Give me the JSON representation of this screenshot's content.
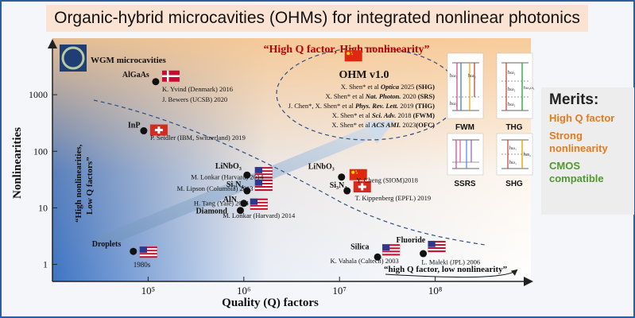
{
  "slide": {
    "title": "Organic-hybrid microcavities (OHMs) for integrated nonlinear photonics",
    "wgm_label": "WGM microcavities",
    "banner": "“High Q factor, High nonlinearity”",
    "ohm_label": "OHM v1.0",
    "left_note_1": "“High nonlinearities,",
    "left_note_2": "Low Q factors”",
    "bottom_note": "“high Q factor, low nonlinearity”"
  },
  "chart_data": {
    "type": "scatter",
    "xlabel": "Quality (Q) factors",
    "ylabel": "Nonlinearities",
    "x_scale": "log",
    "y_scale": "log",
    "xlim": [
      10000,
      1000000000
    ],
    "ylim": [
      0.5,
      10000
    ],
    "x_ticks": [
      {
        "value": 100000,
        "label": "10⁵"
      },
      {
        "value": 1000000,
        "label": "10⁶"
      },
      {
        "value": 10000000,
        "label": "10⁷"
      },
      {
        "value": 100000000,
        "label": "10⁸"
      }
    ],
    "y_ticks": [
      {
        "value": 1,
        "label": "1"
      },
      {
        "value": 10,
        "label": "10"
      },
      {
        "value": 100,
        "label": "100"
      },
      {
        "value": 1000,
        "label": "1000"
      }
    ],
    "points": [
      {
        "name": "Droplets",
        "q": 70000,
        "n": 1.7,
        "note": "1980s",
        "flag": "us"
      },
      {
        "name": "AlGaAs",
        "q": 120000,
        "n": 1700,
        "note": "",
        "flag": "dk"
      },
      {
        "name": "InP",
        "q": 90000,
        "n": 230,
        "note": "",
        "flag": "ch"
      },
      {
        "name": "LiNbO₃",
        "q": 1080000,
        "n": 38,
        "note": "",
        "flag": "us"
      },
      {
        "name": "Si₃N₄",
        "q": 1080000,
        "n": 20,
        "note": "",
        "flag": "us"
      },
      {
        "name": "AlN",
        "q": 1000000,
        "n": 12,
        "note": "",
        "flag": "us"
      },
      {
        "name": "Diamond",
        "q": 920000,
        "n": 9,
        "note": "",
        "flag": ""
      },
      {
        "name": "LiNbO₃",
        "q": 10500000,
        "n": 35,
        "note": "",
        "flag": "cn"
      },
      {
        "name": "Si₃N₄",
        "q": 12000000,
        "n": 20,
        "note": "",
        "flag": "ch"
      },
      {
        "name": "Silica",
        "q": 25000000,
        "n": 1.35,
        "note": "",
        "flag": "us"
      },
      {
        "name": "Fluoride",
        "q": 75000000,
        "n": 1.55,
        "note": "",
        "flag": "us"
      },
      {
        "name": "OHM v1.0",
        "q": 9000000,
        "n": 3200,
        "note": "",
        "flag": "cn"
      }
    ],
    "annotations": [
      {
        "text": "K. Yvind (Denmark) 2016",
        "q": 140000,
        "n": 1150,
        "style": "normal"
      },
      {
        "text": "J. Bewers (UCSB) 2020",
        "q": 140000,
        "n": 750,
        "style": "normal"
      },
      {
        "text": "P. Seidler (IBM, Switzerland) 2019",
        "q": 105000,
        "n": 160,
        "style": "normal"
      },
      {
        "text": "M. Lonkar (Harvard) 2014",
        "q": 280000,
        "n": 32,
        "style": "normal"
      },
      {
        "text": "M. Lipson (Columbia) 2013",
        "q": 200000,
        "n": 20,
        "style": "normal"
      },
      {
        "text": "H. Tang (Yale) 2014",
        "q": 300000,
        "n": 11,
        "style": "normal"
      },
      {
        "text": "M. Lonkar (Harvard) 2014",
        "q": 600000,
        "n": 6.7,
        "style": "normal"
      },
      {
        "text": "Y. Cheng (SIOM)2018",
        "q": 15000000,
        "n": 28,
        "style": "normal"
      },
      {
        "text": "T. Kippenberg (EPFL) 2019",
        "q": 14500000,
        "n": 13.5,
        "style": "normal"
      },
      {
        "text": "K. Vahala (Caltech) 2003",
        "q": 8000000,
        "n": 1.05,
        "style": "normal"
      },
      {
        "text": "L. Maleki (JPL) 2006",
        "q": 72000000,
        "n": 1.0,
        "style": "normal"
      }
    ],
    "ohm_refs": [
      {
        "pre": "X. Shen* et al ",
        "jrn": "Optica",
        "post": " 2025 ",
        "tag": "(SHG)"
      },
      {
        "pre": "X. Shen* et al ",
        "jrn": "Nat. Photon.",
        "post": " 2020 ",
        "tag": "(SRS)"
      },
      {
        "pre": "J. Chen*, X. Shen* et al ",
        "jrn": "Phys. Rev. Lett.",
        "post": " 2019 ",
        "tag": "(THG)"
      },
      {
        "pre": "X. Shen* et al ",
        "jrn": "Sci. Adv.",
        "post": " 2018 ",
        "tag": "(FWM)"
      },
      {
        "pre": "X. Shen* et al ",
        "jrn": "ACS AMI.",
        "post": " 2023",
        "tag": "(OFC)"
      }
    ],
    "grid": false,
    "legend": "none"
  },
  "diagrams": {
    "labels": [
      "FWM",
      "THG",
      "SSRS",
      "SHG"
    ],
    "fwm_levels": [
      "ħω₁",
      "ħω₂",
      "ħω₁"
    ],
    "thg_levels": [
      "ħω₁",
      "ħω₁",
      "ħω₁",
      "ħω₃ω₁"
    ],
    "shg_levels": [
      "ħω₁",
      "ħω₁",
      "ħω₂"
    ]
  },
  "merits": {
    "heading": "Merits:",
    "items": [
      {
        "text": "High Q factor",
        "color": "#e07b22"
      },
      {
        "text": "Strong nonlinearity",
        "color": "#e07b22"
      },
      {
        "text": "CMOS compatible",
        "color": "#4f9a2e"
      }
    ]
  },
  "colors": {
    "plot_bg_left": "#3e74c4",
    "plot_bg_right": "#ffffff",
    "plot_bg_top": "#f7c58e",
    "banner": "#c00000",
    "arrow": "#a8bfd6",
    "border": "#2e5d9c"
  }
}
